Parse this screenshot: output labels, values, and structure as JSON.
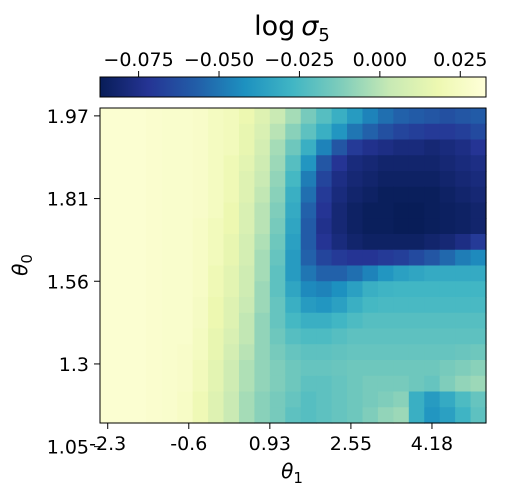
{
  "chart_data": {
    "type": "heatmap",
    "title": "log σ₅",
    "title_parts": {
      "fn": "log",
      "sym": "σ",
      "sub": "5"
    },
    "xlabel": {
      "sym": "θ",
      "sub": "1"
    },
    "ylabel": {
      "sym": "θ",
      "sub": "0"
    },
    "x_ticks": [
      "-2.3",
      "-0.6",
      "0.93",
      "2.55",
      "4.18"
    ],
    "y_ticks": [
      "1.97",
      "1.81",
      "1.56",
      "1.3",
      "1.05"
    ],
    "colorbar": {
      "position": "top",
      "colormap": "YlGnBu_r",
      "vmin": -0.087,
      "vmax": 0.033,
      "ticks": [
        -0.075,
        -0.05,
        -0.025,
        0.0,
        0.025
      ],
      "tick_labels": [
        "−0.075",
        "−0.050",
        "−0.025",
        "0.000",
        "0.025"
      ],
      "stops": [
        "#081d58",
        "#253494",
        "#225ea8",
        "#1d91c0",
        "#41b6c4",
        "#7fcdbb",
        "#c7e9b4",
        "#edf8b1",
        "#ffffd9"
      ]
    },
    "n_cols": 25,
    "n_rows": 20,
    "cols_per_tick": 5.25,
    "rows_per_tick": 5.25,
    "values": [
      [
        0.03,
        0.03,
        0.03,
        0.029,
        0.028,
        0.028,
        0.027,
        0.024,
        0.022,
        0.018,
        0.012,
        0.004,
        -0.004,
        -0.014,
        -0.022,
        -0.03,
        -0.038,
        -0.046,
        -0.052,
        -0.056,
        -0.058,
        -0.06,
        -0.062,
        -0.06,
        -0.058
      ],
      [
        0.03,
        0.03,
        0.03,
        0.029,
        0.028,
        0.028,
        0.027,
        0.024,
        0.022,
        0.016,
        0.01,
        0.0,
        -0.01,
        -0.02,
        -0.03,
        -0.04,
        -0.05,
        -0.056,
        -0.062,
        -0.066,
        -0.068,
        -0.07,
        -0.07,
        -0.068,
        -0.064
      ],
      [
        0.03,
        0.03,
        0.03,
        0.029,
        0.028,
        0.028,
        0.027,
        0.024,
        0.022,
        0.016,
        0.008,
        -0.004,
        -0.016,
        -0.03,
        -0.046,
        -0.06,
        -0.07,
        -0.074,
        -0.076,
        -0.078,
        -0.078,
        -0.08,
        -0.078,
        -0.076,
        -0.072
      ],
      [
        0.03,
        0.03,
        0.03,
        0.029,
        0.028,
        0.028,
        0.027,
        0.024,
        0.02,
        0.014,
        0.006,
        -0.006,
        -0.022,
        -0.04,
        -0.06,
        -0.072,
        -0.078,
        -0.08,
        -0.082,
        -0.082,
        -0.082,
        -0.082,
        -0.08,
        -0.078,
        -0.076
      ],
      [
        0.03,
        0.03,
        0.03,
        0.029,
        0.028,
        0.028,
        0.027,
        0.024,
        0.02,
        0.012,
        0.004,
        -0.008,
        -0.026,
        -0.048,
        -0.066,
        -0.076,
        -0.08,
        -0.082,
        -0.084,
        -0.084,
        -0.084,
        -0.084,
        -0.082,
        -0.08,
        -0.078
      ],
      [
        0.03,
        0.03,
        0.03,
        0.029,
        0.028,
        0.028,
        0.027,
        0.024,
        0.02,
        0.012,
        0.002,
        -0.01,
        -0.03,
        -0.052,
        -0.07,
        -0.078,
        -0.082,
        -0.084,
        -0.086,
        -0.086,
        -0.086,
        -0.086,
        -0.084,
        -0.082,
        -0.08
      ],
      [
        0.03,
        0.03,
        0.03,
        0.029,
        0.028,
        0.028,
        0.027,
        0.024,
        0.018,
        0.01,
        0.0,
        -0.012,
        -0.032,
        -0.056,
        -0.072,
        -0.08,
        -0.084,
        -0.086,
        -0.086,
        -0.087,
        -0.087,
        -0.086,
        -0.085,
        -0.084,
        -0.082
      ],
      [
        0.03,
        0.03,
        0.03,
        0.029,
        0.028,
        0.028,
        0.026,
        0.022,
        0.018,
        0.01,
        0.0,
        -0.014,
        -0.034,
        -0.058,
        -0.074,
        -0.08,
        -0.084,
        -0.086,
        -0.086,
        -0.087,
        -0.087,
        -0.086,
        -0.085,
        -0.084,
        -0.082
      ],
      [
        0.03,
        0.03,
        0.03,
        0.029,
        0.028,
        0.028,
        0.026,
        0.022,
        0.016,
        0.008,
        -0.002,
        -0.016,
        -0.036,
        -0.058,
        -0.072,
        -0.078,
        -0.082,
        -0.084,
        -0.084,
        -0.084,
        -0.084,
        -0.082,
        -0.08,
        -0.076,
        -0.07
      ],
      [
        0.03,
        0.03,
        0.03,
        0.029,
        0.028,
        0.028,
        0.026,
        0.022,
        0.016,
        0.008,
        -0.004,
        -0.018,
        -0.038,
        -0.056,
        -0.066,
        -0.07,
        -0.072,
        -0.072,
        -0.07,
        -0.068,
        -0.064,
        -0.06,
        -0.054,
        -0.048,
        -0.044
      ],
      [
        0.03,
        0.03,
        0.03,
        0.029,
        0.028,
        0.028,
        0.026,
        0.02,
        0.014,
        0.006,
        -0.004,
        -0.02,
        -0.038,
        -0.05,
        -0.056,
        -0.056,
        -0.052,
        -0.046,
        -0.04,
        -0.036,
        -0.034,
        -0.032,
        -0.032,
        -0.032,
        -0.032
      ],
      [
        0.03,
        0.03,
        0.03,
        0.029,
        0.028,
        0.028,
        0.026,
        0.02,
        0.014,
        0.006,
        -0.006,
        -0.02,
        -0.034,
        -0.044,
        -0.046,
        -0.042,
        -0.036,
        -0.03,
        -0.028,
        -0.027,
        -0.027,
        -0.027,
        -0.027,
        -0.027,
        -0.027
      ],
      [
        0.03,
        0.03,
        0.03,
        0.029,
        0.028,
        0.028,
        0.025,
        0.018,
        0.012,
        0.004,
        -0.006,
        -0.018,
        -0.03,
        -0.038,
        -0.04,
        -0.036,
        -0.03,
        -0.026,
        -0.025,
        -0.025,
        -0.025,
        -0.025,
        -0.025,
        -0.025,
        -0.025
      ],
      [
        0.03,
        0.03,
        0.03,
        0.029,
        0.028,
        0.028,
        0.025,
        0.018,
        0.012,
        0.002,
        -0.008,
        -0.018,
        -0.026,
        -0.03,
        -0.03,
        -0.027,
        -0.024,
        -0.022,
        -0.022,
        -0.022,
        -0.022,
        -0.022,
        -0.022,
        -0.022,
        -0.022
      ],
      [
        0.03,
        0.03,
        0.03,
        0.029,
        0.028,
        0.028,
        0.024,
        0.016,
        0.01,
        0.002,
        -0.008,
        -0.016,
        -0.022,
        -0.024,
        -0.024,
        -0.022,
        -0.02,
        -0.02,
        -0.02,
        -0.02,
        -0.02,
        -0.02,
        -0.02,
        -0.02,
        -0.02
      ],
      [
        0.03,
        0.03,
        0.03,
        0.029,
        0.028,
        0.027,
        0.024,
        0.016,
        0.008,
        0.0,
        -0.008,
        -0.014,
        -0.018,
        -0.02,
        -0.02,
        -0.019,
        -0.018,
        -0.018,
        -0.018,
        -0.018,
        -0.018,
        -0.018,
        -0.018,
        -0.017,
        -0.016
      ],
      [
        0.03,
        0.03,
        0.03,
        0.029,
        0.028,
        0.027,
        0.022,
        0.014,
        0.006,
        -0.002,
        -0.008,
        -0.012,
        -0.016,
        -0.018,
        -0.018,
        -0.017,
        -0.016,
        -0.016,
        -0.016,
        -0.016,
        -0.016,
        -0.016,
        -0.014,
        -0.012,
        -0.01
      ],
      [
        0.03,
        0.03,
        0.03,
        0.029,
        0.028,
        0.027,
        0.022,
        0.014,
        0.006,
        -0.002,
        -0.008,
        -0.012,
        -0.016,
        -0.02,
        -0.02,
        -0.018,
        -0.016,
        -0.014,
        -0.014,
        -0.014,
        -0.016,
        -0.018,
        -0.012,
        -0.008,
        -0.006
      ],
      [
        0.03,
        0.03,
        0.03,
        0.029,
        0.028,
        0.026,
        0.02,
        0.012,
        0.004,
        -0.004,
        -0.01,
        -0.014,
        -0.018,
        -0.022,
        -0.02,
        -0.018,
        -0.016,
        -0.014,
        -0.012,
        -0.01,
        -0.03,
        -0.038,
        -0.032,
        -0.024,
        -0.018
      ],
      [
        0.03,
        0.03,
        0.03,
        0.029,
        0.028,
        0.026,
        0.02,
        0.012,
        0.004,
        -0.004,
        -0.01,
        -0.014,
        -0.02,
        -0.022,
        -0.02,
        -0.018,
        -0.016,
        -0.012,
        -0.008,
        -0.006,
        -0.03,
        -0.04,
        -0.036,
        -0.028,
        -0.02
      ]
    ]
  }
}
